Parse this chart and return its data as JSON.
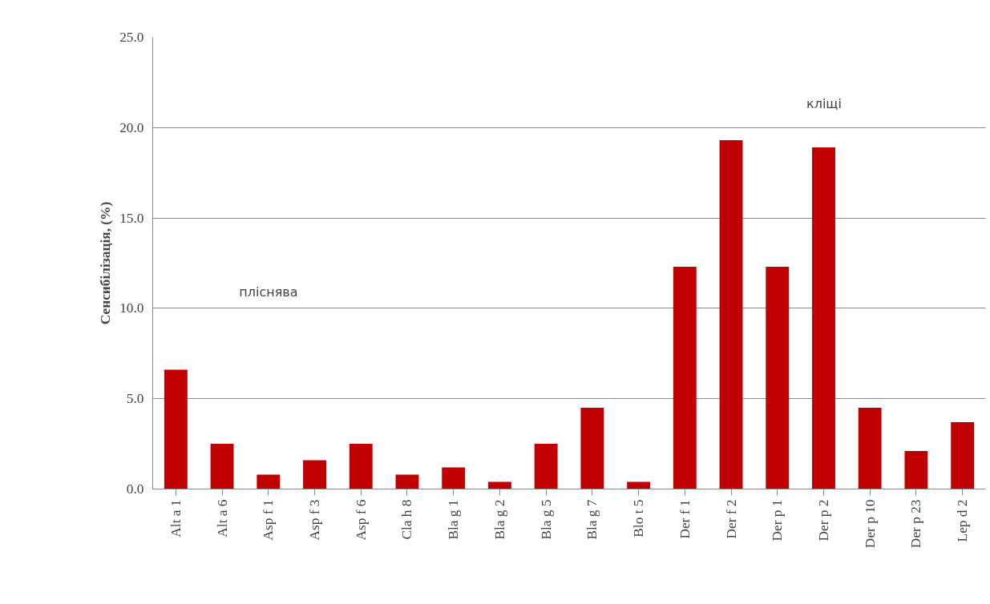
{
  "chart_data": {
    "type": "bar",
    "ylabel": "Сенсибілізація, (%)",
    "categories": [
      "Alt a 1",
      "Alt a 6",
      "Asp f 1",
      "Asp f 3",
      "Asp f 6",
      "Cla h 8",
      "Bla g 1",
      "Bla g 2",
      "Bla g 5",
      "Bla g 7",
      "Blo t 5",
      "Der f 1",
      "Der f 2",
      "Der p 1",
      "Der p 2",
      "Der p 10",
      "Der p 23",
      "Lep d 2"
    ],
    "values": [
      6.6,
      2.5,
      0.8,
      1.6,
      2.5,
      0.8,
      1.2,
      0.4,
      2.5,
      4.5,
      0.4,
      12.3,
      19.3,
      12.3,
      18.9,
      4.5,
      2.1,
      3.7
    ],
    "color": "#c00000",
    "ylim": [
      0,
      25
    ],
    "yticks": [
      {
        "value": 0,
        "label": "0.0"
      },
      {
        "value": 5,
        "label": "5.0"
      },
      {
        "value": 10,
        "label": "10.0"
      },
      {
        "value": 15,
        "label": "15.0"
      },
      {
        "value": 20,
        "label": "20.0"
      },
      {
        "value": 25,
        "label": "25.0"
      }
    ],
    "grid": "y",
    "annotations": [
      "пліснява",
      "кліщі"
    ]
  }
}
